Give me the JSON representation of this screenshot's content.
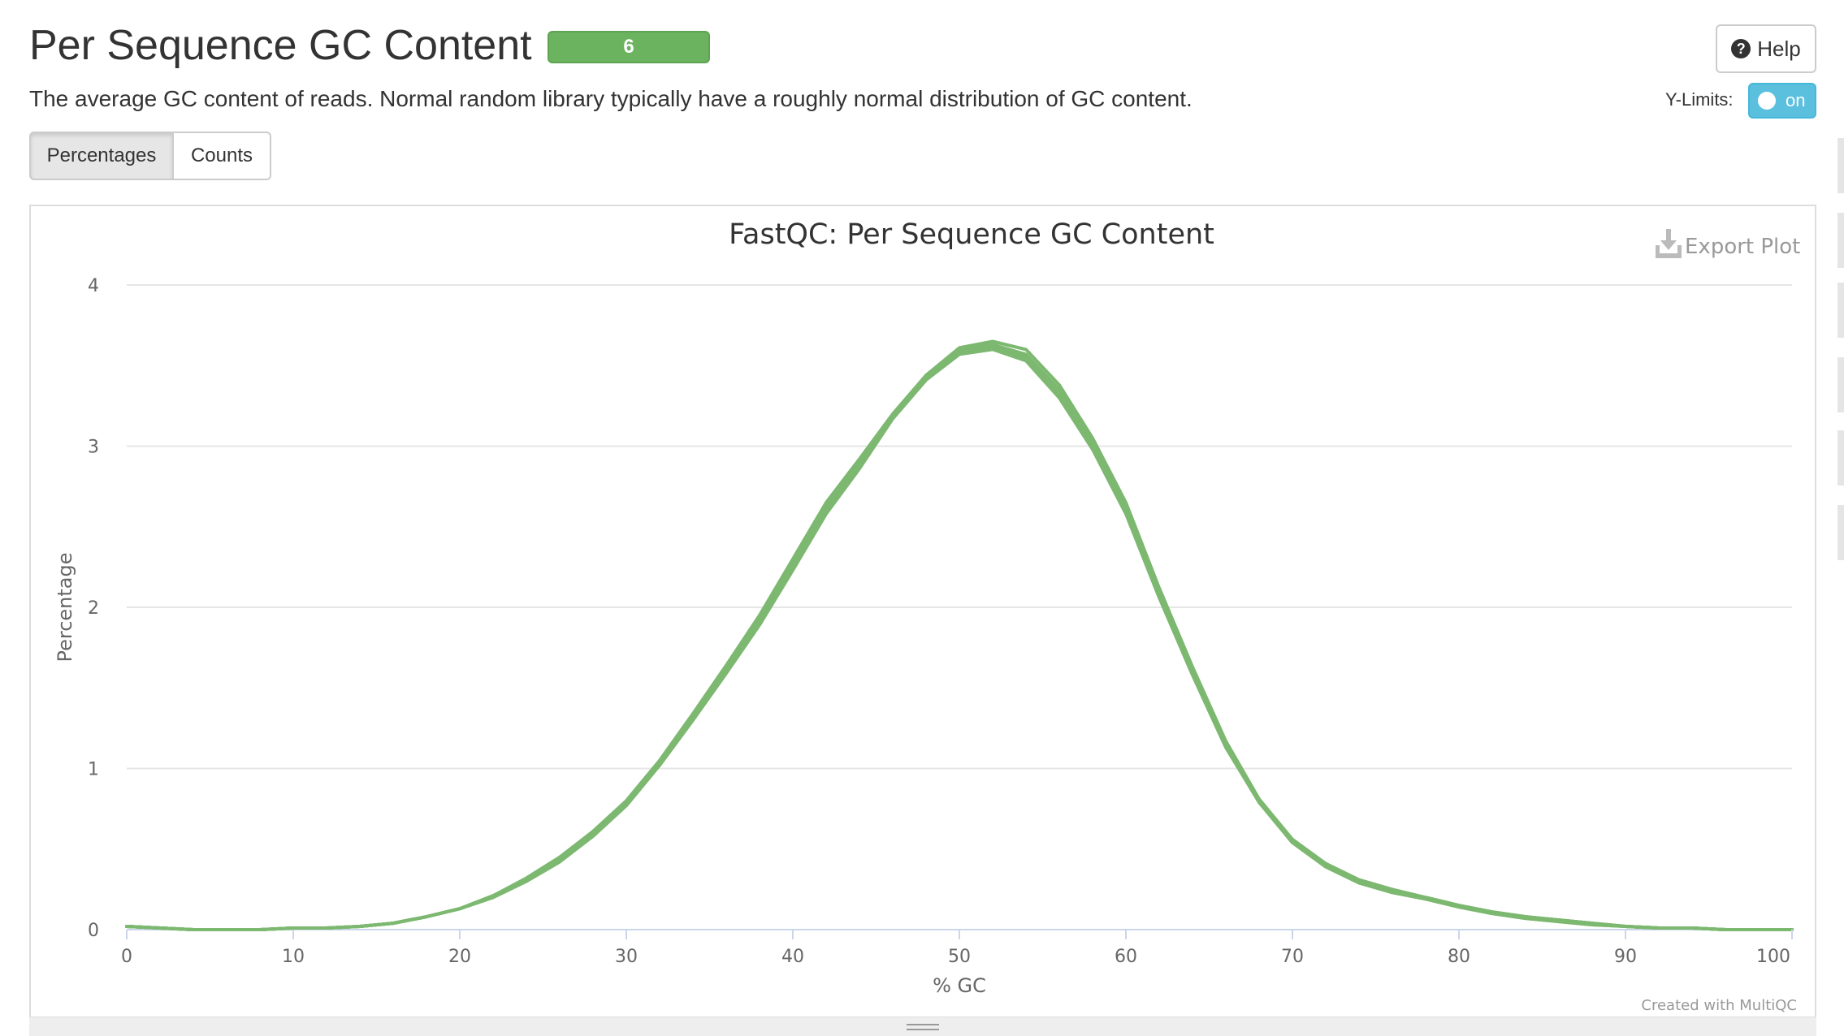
{
  "header": {
    "title": "Per Sequence GC Content",
    "badge": "6",
    "description": "The average GC content of reads. Normal random library typically have a roughly normal distribution of GC content.",
    "help_label": "Help",
    "ylimits_label": "Y-Limits:",
    "ylimits_state": "on"
  },
  "tabs": {
    "percentages": "Percentages",
    "counts": "Counts"
  },
  "plot": {
    "export_label": "Export Plot",
    "credit": "Created with MultiQC"
  },
  "colors": {
    "series": "#7cb870",
    "grid": "#e6e6e6",
    "badge": "#6cb35f",
    "toggle": "#5bc0de"
  },
  "chart_data": {
    "type": "line",
    "title": "FastQC: Per Sequence GC Content",
    "xlabel": "% GC",
    "ylabel": "Percentage",
    "xlim": [
      0,
      100
    ],
    "ylim": [
      0,
      4
    ],
    "xticks": [
      0,
      10,
      20,
      30,
      40,
      50,
      60,
      70,
      80,
      90,
      100
    ],
    "yticks": [
      0,
      1,
      2,
      3,
      4
    ],
    "grid": true,
    "x": [
      0,
      2,
      4,
      6,
      8,
      10,
      12,
      14,
      16,
      18,
      20,
      22,
      24,
      26,
      28,
      30,
      32,
      34,
      36,
      38,
      40,
      42,
      44,
      46,
      48,
      50,
      52,
      54,
      56,
      58,
      60,
      62,
      64,
      66,
      68,
      70,
      72,
      74,
      76,
      78,
      80,
      82,
      84,
      86,
      88,
      90,
      92,
      94,
      96,
      98,
      100
    ],
    "series": [
      {
        "values": [
          0.02,
          0.01,
          0.0,
          0.0,
          0.0,
          0.01,
          0.01,
          0.02,
          0.04,
          0.08,
          0.13,
          0.21,
          0.31,
          0.43,
          0.59,
          0.78,
          1.03,
          1.31,
          1.6,
          1.9,
          2.25,
          2.6,
          2.88,
          3.18,
          3.42,
          3.58,
          3.61,
          3.55,
          3.32,
          3.0,
          2.6,
          2.08,
          1.6,
          1.15,
          0.8,
          0.55,
          0.4,
          0.3,
          0.24,
          0.2,
          0.15,
          0.11,
          0.08,
          0.06,
          0.04,
          0.02,
          0.01,
          0.01,
          0.0,
          0.0,
          0.0
        ]
      },
      {
        "values": [
          0.02,
          0.01,
          0.0,
          0.0,
          0.0,
          0.01,
          0.01,
          0.02,
          0.04,
          0.08,
          0.13,
          0.21,
          0.32,
          0.45,
          0.61,
          0.8,
          1.05,
          1.34,
          1.64,
          1.95,
          2.3,
          2.65,
          2.92,
          3.2,
          3.44,
          3.61,
          3.65,
          3.6,
          3.38,
          3.05,
          2.65,
          2.12,
          1.63,
          1.17,
          0.81,
          0.56,
          0.41,
          0.31,
          0.25,
          0.2,
          0.15,
          0.11,
          0.08,
          0.06,
          0.04,
          0.02,
          0.01,
          0.01,
          0.0,
          0.0,
          0.0
        ]
      },
      {
        "values": [
          0.02,
          0.01,
          0.0,
          0.0,
          0.0,
          0.01,
          0.01,
          0.02,
          0.04,
          0.08,
          0.13,
          0.2,
          0.3,
          0.42,
          0.58,
          0.77,
          1.02,
          1.3,
          1.59,
          1.89,
          2.23,
          2.58,
          2.86,
          3.17,
          3.41,
          3.57,
          3.6,
          3.53,
          3.3,
          2.98,
          2.58,
          2.06,
          1.58,
          1.13,
          0.79,
          0.54,
          0.39,
          0.29,
          0.23,
          0.19,
          0.14,
          0.1,
          0.07,
          0.05,
          0.03,
          0.02,
          0.01,
          0.01,
          0.0,
          0.0,
          0.0
        ]
      },
      {
        "values": [
          0.02,
          0.01,
          0.0,
          0.0,
          0.0,
          0.01,
          0.01,
          0.02,
          0.04,
          0.08,
          0.13,
          0.21,
          0.31,
          0.44,
          0.6,
          0.79,
          1.04,
          1.32,
          1.62,
          1.92,
          2.27,
          2.62,
          2.9,
          3.19,
          3.43,
          3.6,
          3.63,
          3.57,
          3.35,
          3.02,
          2.62,
          2.1,
          1.61,
          1.16,
          0.8,
          0.55,
          0.4,
          0.3,
          0.24,
          0.2,
          0.15,
          0.11,
          0.08,
          0.06,
          0.04,
          0.02,
          0.01,
          0.01,
          0.0,
          0.0,
          0.0
        ]
      },
      {
        "values": [
          0.02,
          0.01,
          0.0,
          0.0,
          0.0,
          0.01,
          0.01,
          0.02,
          0.04,
          0.08,
          0.13,
          0.21,
          0.31,
          0.43,
          0.59,
          0.78,
          1.03,
          1.31,
          1.61,
          1.91,
          2.26,
          2.61,
          2.89,
          3.18,
          3.42,
          3.59,
          3.62,
          3.56,
          3.33,
          3.01,
          2.61,
          2.09,
          1.6,
          1.15,
          0.8,
          0.55,
          0.4,
          0.3,
          0.24,
          0.2,
          0.15,
          0.11,
          0.08,
          0.06,
          0.04,
          0.02,
          0.01,
          0.01,
          0.0,
          0.0,
          0.0
        ]
      },
      {
        "values": [
          0.02,
          0.01,
          0.0,
          0.0,
          0.0,
          0.01,
          0.01,
          0.02,
          0.04,
          0.08,
          0.13,
          0.2,
          0.3,
          0.43,
          0.58,
          0.77,
          1.02,
          1.3,
          1.6,
          1.9,
          2.24,
          2.59,
          2.87,
          3.18,
          3.42,
          3.58,
          3.61,
          3.54,
          3.31,
          2.99,
          2.59,
          2.07,
          1.59,
          1.14,
          0.79,
          0.54,
          0.39,
          0.29,
          0.23,
          0.19,
          0.14,
          0.1,
          0.07,
          0.05,
          0.03,
          0.02,
          0.01,
          0.01,
          0.0,
          0.0,
          0.0
        ]
      }
    ]
  }
}
